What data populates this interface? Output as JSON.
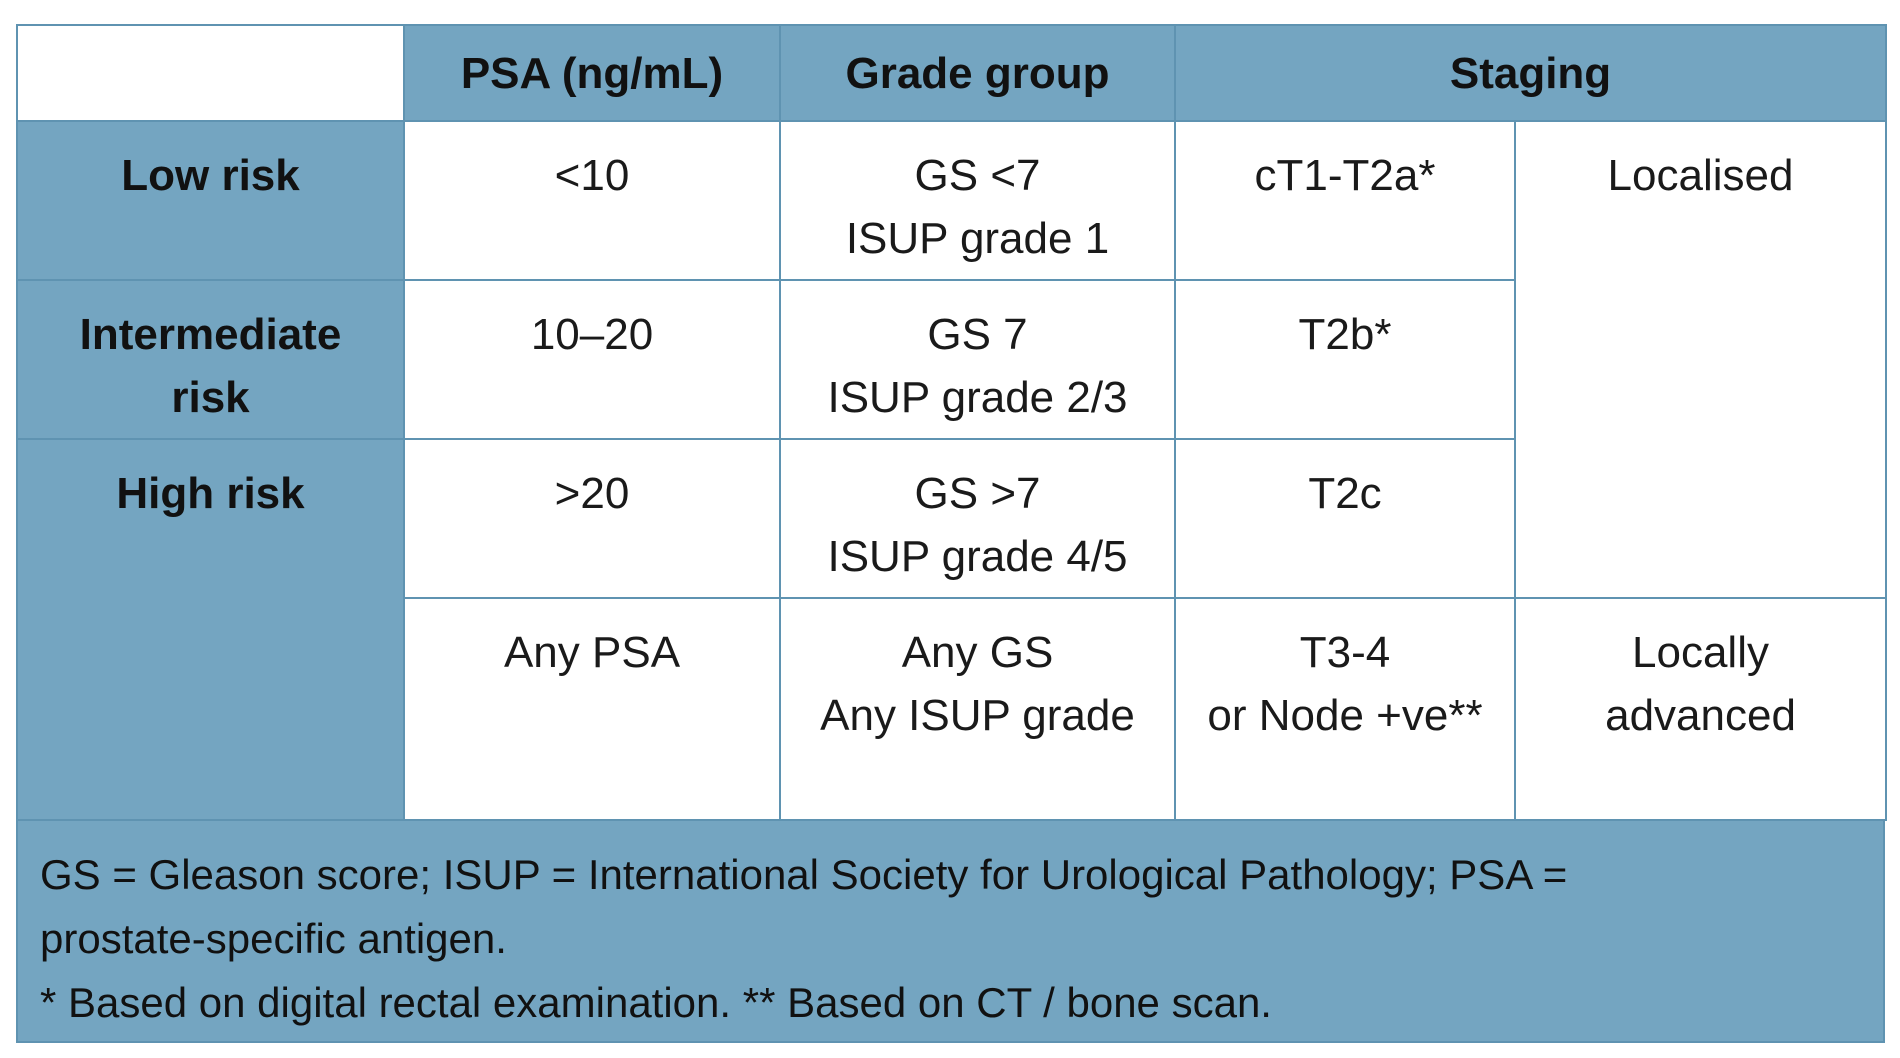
{
  "table": {
    "headers": {
      "corner": "",
      "psa": "PSA (ng/mL)",
      "grade_group": "Grade group",
      "staging": "Staging"
    },
    "rows": [
      {
        "risk": [
          "Low risk"
        ],
        "psa": [
          "<10"
        ],
        "grade": [
          "GS <7",
          "ISUP grade 1"
        ],
        "stage": [
          "cT1-T2a*"
        ]
      },
      {
        "risk": [
          "Intermediate",
          "risk"
        ],
        "psa": [
          "10–20"
        ],
        "grade": [
          "GS 7",
          "ISUP grade 2/3"
        ],
        "stage": [
          "T2b*"
        ]
      },
      {
        "risk": [
          "High risk"
        ],
        "psa": [
          ">20"
        ],
        "grade": [
          "GS >7",
          "ISUP grade 4/5"
        ],
        "stage": [
          "T2c"
        ]
      },
      {
        "psa": [
          "Any PSA"
        ],
        "grade": [
          "Any GS",
          "Any ISUP grade"
        ],
        "stage": [
          "T3-4",
          "or Node +ve**"
        ]
      }
    ],
    "extent": {
      "localised": [
        "Localised"
      ],
      "locally_advanced": [
        "Locally",
        "advanced"
      ]
    }
  },
  "notes": [
    "GS = Gleason score; ISUP = International Society for Urological Pathology; PSA =",
    "prostate-specific antigen.",
    "* Based on digital rectal examination. ** Based on CT / bone scan."
  ],
  "colors": {
    "header_fill": "#74a5c1",
    "border": "#5f93b1",
    "cell_fill": "#ffffff"
  }
}
